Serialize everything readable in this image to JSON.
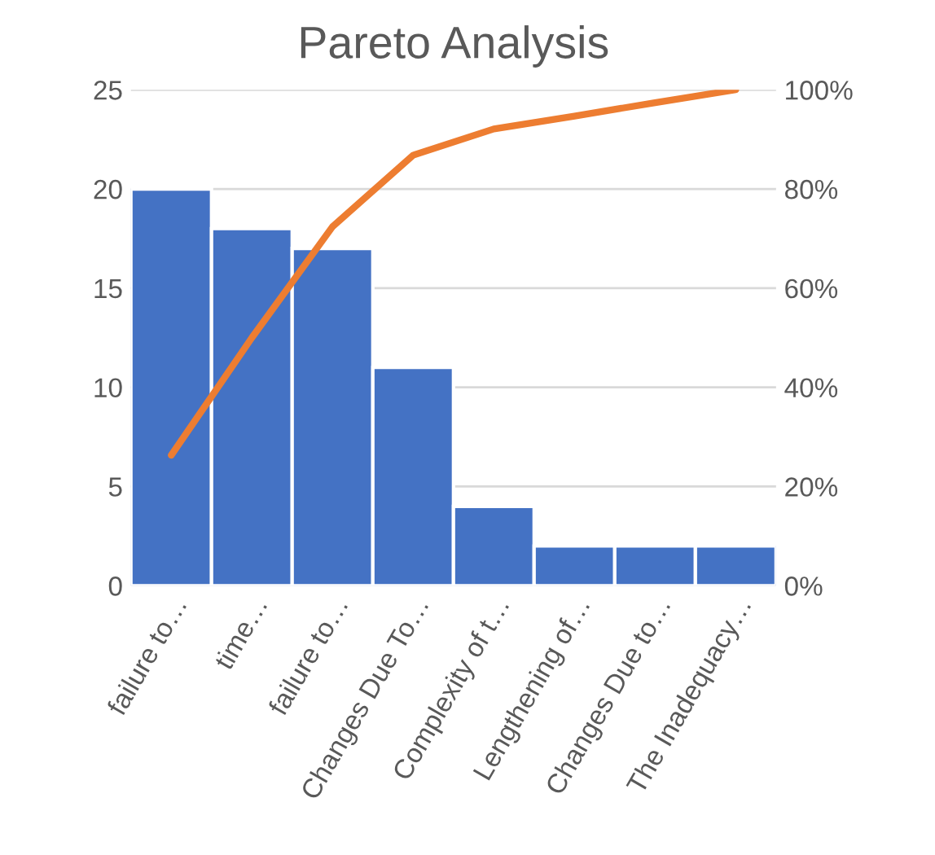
{
  "chart_data": {
    "type": "bar",
    "title": "Pareto Analysis",
    "categories": [
      "failure to…",
      "time…",
      "failure to…",
      "Changes Due To…",
      "Complexity of t…",
      "Lengthening of…",
      "Changes Due to…",
      "The Inadequacy…"
    ],
    "series": [
      {
        "color": "#4472c4",
        "values": [
          20,
          18,
          17,
          11,
          4,
          2,
          2,
          2
        ]
      },
      {
        "type": "line",
        "axis": "y2",
        "color": "#ed7d31",
        "values": [
          26.3,
          50.0,
          72.4,
          86.8,
          92.1,
          94.7,
          97.4,
          100.0
        ]
      }
    ],
    "ylim": [
      0,
      25
    ],
    "yticks": [
      0,
      5,
      10,
      15,
      20,
      25
    ],
    "y2lim": [
      0,
      100
    ],
    "y2ticks": [
      {
        "value": 0,
        "label": "0%"
      },
      {
        "value": 20,
        "label": "20%"
      },
      {
        "value": 40,
        "label": "40%"
      },
      {
        "value": 60,
        "label": "60%"
      },
      {
        "value": 80,
        "label": "80%"
      },
      {
        "value": 100,
        "label": "100%"
      }
    ],
    "grid": "y",
    "line_style": "solid",
    "marker": "none"
  }
}
